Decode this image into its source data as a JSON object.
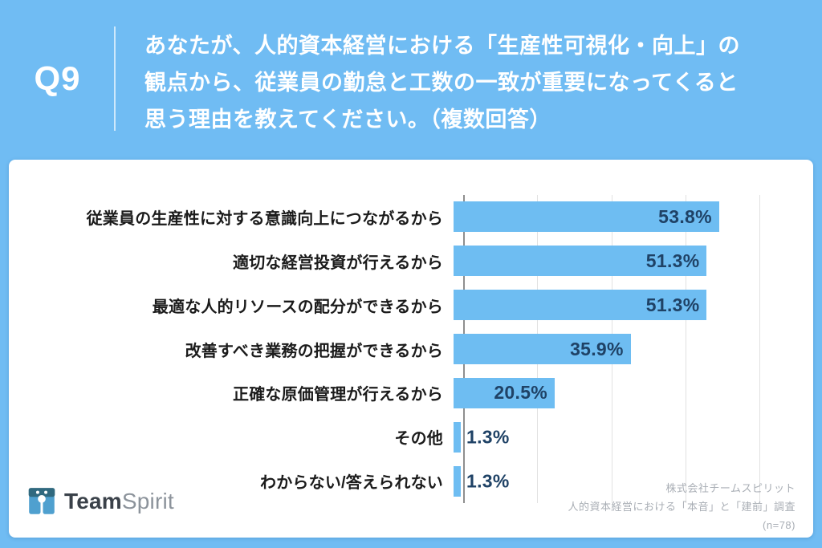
{
  "header": {
    "question_number": "Q9",
    "question_lines": [
      "あなたが、人的資本経営における「生産性可視化・向上」の",
      "観点から、従業員の勤怠と工数の一致が重要になってくると",
      "思う理由を教えてください。（複数回答）"
    ]
  },
  "chart_data": {
    "type": "bar",
    "orientation": "horizontal",
    "categories": [
      "従業員の生産性に対する意識向上につながるから",
      "適切な経営投資が行えるから",
      "最適な人的リソースの配分ができるから",
      "改善すべき業務の把握ができるから",
      "正確な原価管理が行えるから",
      "その他",
      "わからない/答えられない"
    ],
    "values": [
      53.8,
      51.3,
      51.3,
      35.9,
      20.5,
      1.3,
      1.3
    ],
    "value_labels": [
      "53.8%",
      "51.3%",
      "51.3%",
      "35.9%",
      "20.5%",
      "1.3%",
      "1.3%"
    ],
    "unit": "%",
    "xlim": [
      0,
      60
    ],
    "gridline_interval": 15,
    "grid": true,
    "legend": "none",
    "bar_color": "#6ebdf2",
    "value_text_color": "#1f4266"
  },
  "footer": {
    "logo_bold": "Team",
    "logo_light": "Spirit",
    "source_lines": [
      "株式会社チームスピリット",
      "人的資本経営における「本音」と「建前」調査",
      "(n=78)"
    ]
  },
  "colors": {
    "background_blue": "#70bcf3",
    "card_white": "#ffffff",
    "header_text": "#ffffff",
    "label_text": "#1b1b1b",
    "gridline": "#e1e1e1",
    "axis_line": "#8f8f8f",
    "source_text": "#a9aeb5",
    "logo_dark_blue": "#30697f",
    "logo_light_blue": "#4fa0cf"
  }
}
